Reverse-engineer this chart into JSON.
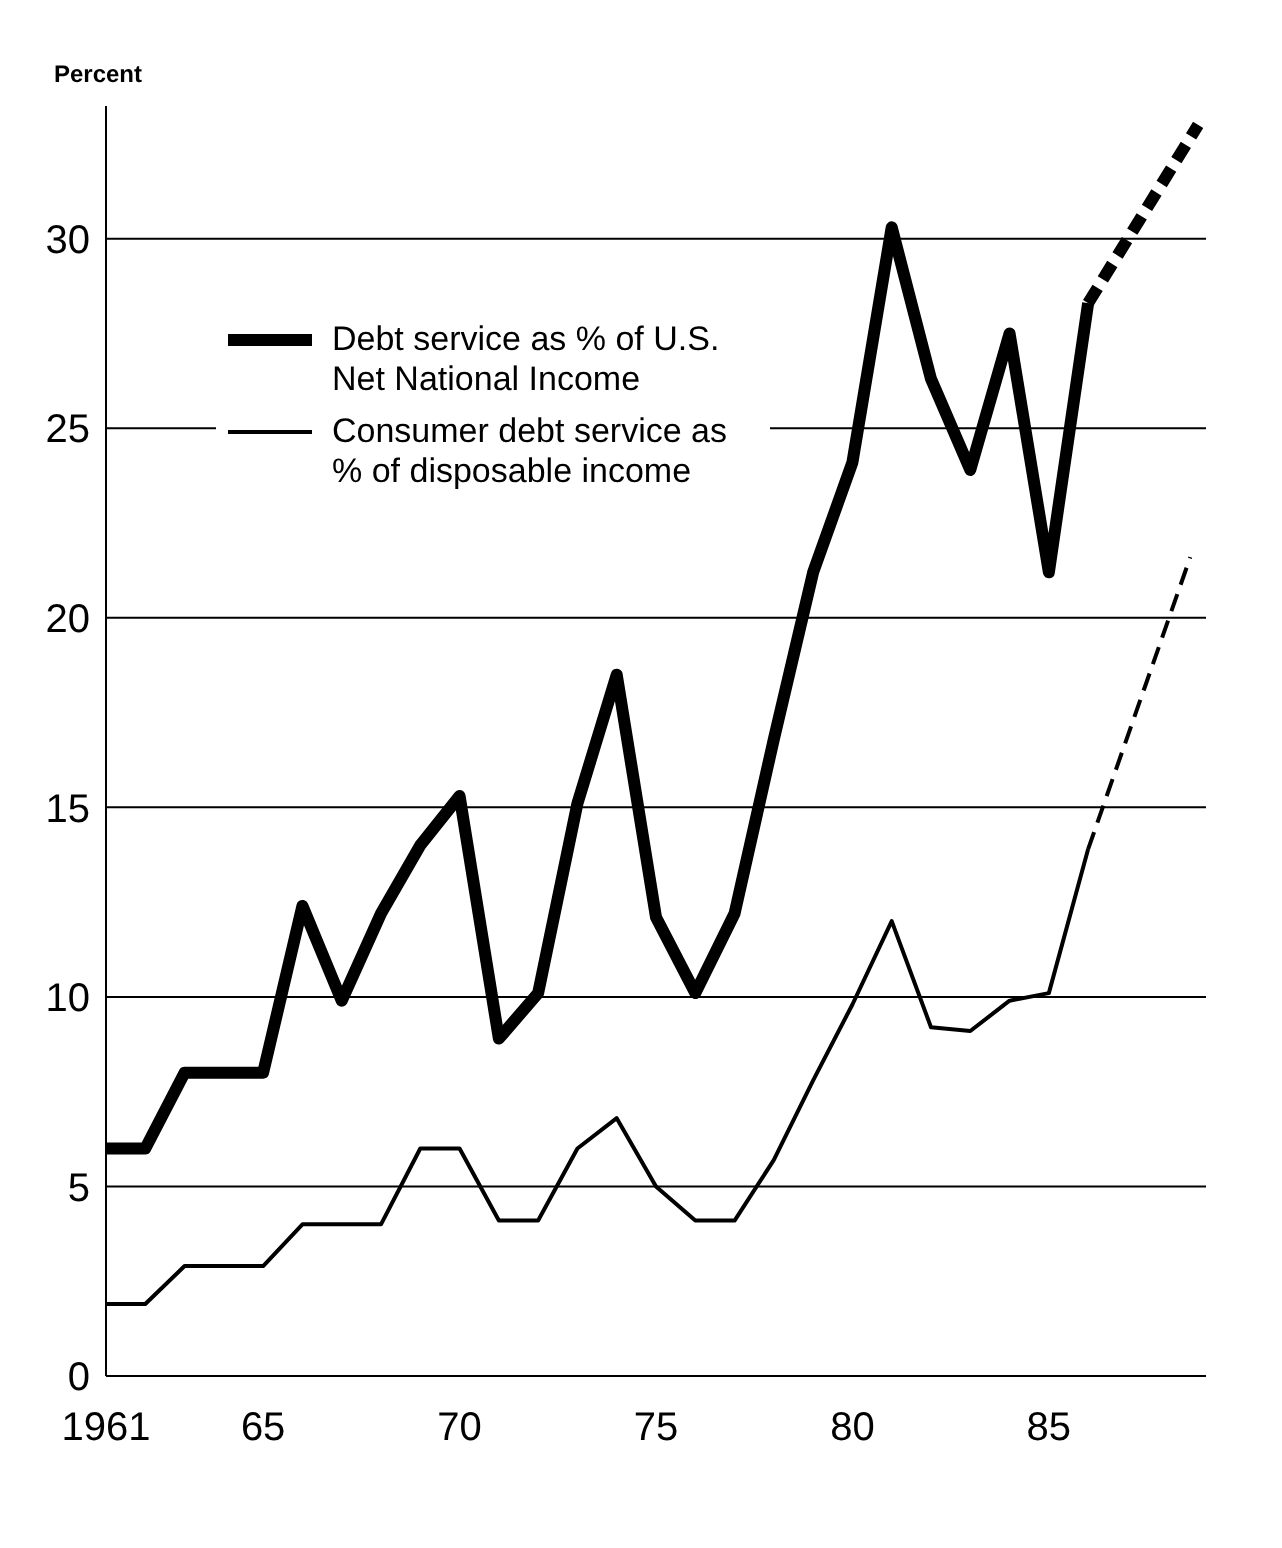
{
  "chart_data": {
    "type": "line",
    "ylabel": "Percent",
    "xlim": [
      1961,
      1989
    ],
    "xticks": [
      {
        "value": 1961,
        "label": "1961"
      },
      {
        "value": 1965,
        "label": "65"
      },
      {
        "value": 1970,
        "label": "70"
      },
      {
        "value": 1975,
        "label": "75"
      },
      {
        "value": 1980,
        "label": "80"
      },
      {
        "value": 1985,
        "label": "85"
      }
    ],
    "ylim": [
      0,
      33.5
    ],
    "yticks": [
      0,
      5,
      10,
      15,
      20,
      25,
      30
    ],
    "grid": "y",
    "legend": "top left",
    "marker": "none",
    "series": [
      {
        "name": "Debt service as % of U.S. Net National Income",
        "color": "#000000",
        "line_style": "solid",
        "x": [
          1961,
          1962,
          1963,
          1964,
          1965,
          1966,
          1967,
          1968,
          1969,
          1970,
          1971,
          1972,
          1973,
          1974,
          1975,
          1976,
          1977,
          1978,
          1979,
          1980,
          1981,
          1982,
          1983,
          1984,
          1985,
          1986
        ],
        "values": [
          6.0,
          6.0,
          8.0,
          8.0,
          8.0,
          12.4,
          9.9,
          12.2,
          14.0,
          15.3,
          8.9,
          10.1,
          15.1,
          18.5,
          12.1,
          10.1,
          12.2,
          16.8,
          21.2,
          24.1,
          30.3,
          26.3,
          23.9,
          27.5,
          21.2,
          28.3
        ]
      },
      {
        "name": "Consumer debt service as % of disposable income",
        "color": "#000000",
        "line_style": "solid",
        "x": [
          1961,
          1962,
          1963,
          1964,
          1965,
          1966,
          1967,
          1968,
          1969,
          1970,
          1971,
          1972,
          1973,
          1974,
          1975,
          1976,
          1977,
          1978,
          1979,
          1980,
          1981,
          1982,
          1983,
          1984,
          1985,
          1986
        ],
        "values": [
          1.9,
          1.9,
          2.9,
          2.9,
          2.9,
          4.0,
          4.0,
          4.0,
          6.0,
          6.0,
          4.1,
          4.1,
          6.0,
          6.8,
          5.0,
          4.1,
          4.1,
          5.7,
          7.8,
          9.8,
          12.0,
          9.2,
          9.1,
          9.9,
          10.1,
          13.9
        ]
      },
      {
        "color": "#000000",
        "line_style": "dashed",
        "x": [
          1986,
          1988.8
        ],
        "values": [
          28.3,
          33
        ]
      },
      {
        "color": "#000000",
        "line_style": "dashed",
        "x": [
          1986,
          1988.6
        ],
        "values": [
          13.9,
          21.6
        ]
      }
    ]
  }
}
